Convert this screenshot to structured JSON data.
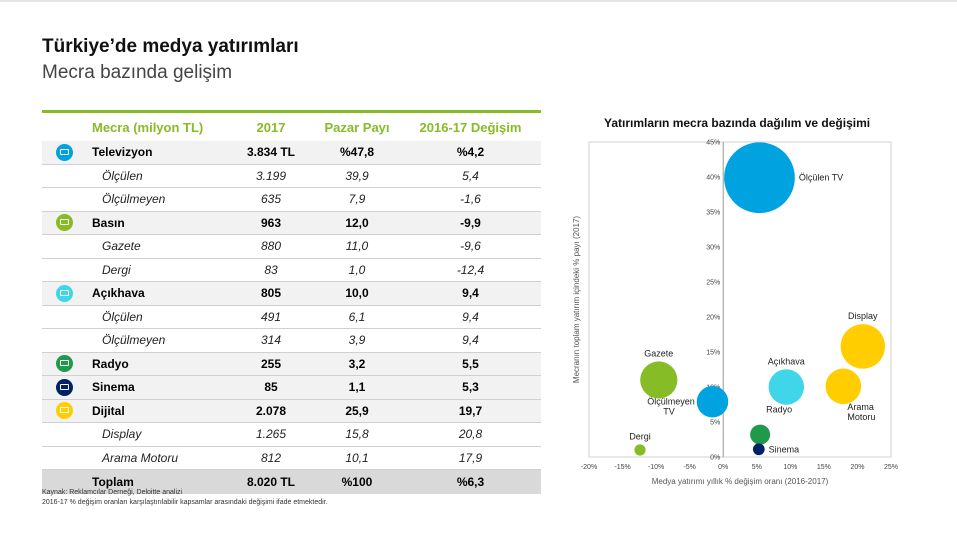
{
  "header": {
    "title": "Türkiye’de medya yatırımları",
    "subtitle": "Mecra bazında gelişim"
  },
  "table": {
    "columns": [
      "Mecra (milyon TL)",
      "2017",
      "Pazar Payı",
      "2016-17 Değişim"
    ],
    "rows": [
      {
        "name": "Televizyon",
        "v2017": "3.834 TL",
        "share": "%47,8",
        "change": "%4,2",
        "level": "main",
        "icon": "tv-icon",
        "icon_color": "#00a3e0"
      },
      {
        "name": "Ölçülen",
        "v2017": "3.199",
        "share": "39,9",
        "change": "5,4",
        "level": "sub"
      },
      {
        "name": "Ölçülmeyen",
        "v2017": "635",
        "share": "7,9",
        "change": "-1,6",
        "level": "sub"
      },
      {
        "name": "Basın",
        "v2017": "963",
        "share": "12,0",
        "change": "-9,9",
        "level": "main",
        "icon": "newspaper-icon",
        "icon_color": "#86bc25"
      },
      {
        "name": "Gazete",
        "v2017": "880",
        "share": "11,0",
        "change": "-9,6",
        "level": "sub"
      },
      {
        "name": "Dergi",
        "v2017": "83",
        "share": "1,0",
        "change": "-12,4",
        "level": "sub"
      },
      {
        "name": "Açıkhava",
        "v2017": "805",
        "share": "10,0",
        "change": "9,4",
        "level": "main",
        "icon": "billboard-icon",
        "icon_color": "#3ed6e8"
      },
      {
        "name": "Ölçülen",
        "v2017": "491",
        "share": "6,1",
        "change": "9,4",
        "level": "sub"
      },
      {
        "name": "Ölçülmeyen",
        "v2017": "314",
        "share": "3,9",
        "change": "9,4",
        "level": "sub"
      },
      {
        "name": "Radyo",
        "v2017": "255",
        "share": "3,2",
        "change": "5,5",
        "level": "main",
        "icon": "radio-icon",
        "icon_color": "#1f9a4a"
      },
      {
        "name": "Sinema",
        "v2017": "85",
        "share": "1,1",
        "change": "5,3",
        "level": "main",
        "icon": "cinema-icon",
        "icon_color": "#012169"
      },
      {
        "name": "Dijital",
        "v2017": "2.078",
        "share": "25,9",
        "change": "19,7",
        "level": "main",
        "icon": "digital-icon",
        "icon_color": "#ffcd00"
      },
      {
        "name": "Display",
        "v2017": "1.265",
        "share": "15,8",
        "change": "20,8",
        "level": "sub"
      },
      {
        "name": "Arama Motoru",
        "v2017": "812",
        "share": "10,1",
        "change": "17,9",
        "level": "sub"
      },
      {
        "name": "Toplam",
        "v2017": "8.020 TL",
        "share": "%100",
        "change": "%6,3",
        "level": "total"
      }
    ]
  },
  "footnotes": [
    "Kaynak: Reklamcılar Derneği, Deloitte analizi",
    "2016-17 % değişim oranları karşılaştırılabilir kapsamlar arasındaki değişimi ifade etmektedir."
  ],
  "chart_data": {
    "type": "scatter",
    "title": "Yatırımların mecra bazında dağılım ve değişimi",
    "xlabel": "Medya yatırımı yıllık % değişim oranı (2016-2017)",
    "ylabel": "Mecranın toplam yatırım içindeki % payı (2017)",
    "xlim": [
      -20,
      25
    ],
    "ylim": [
      0,
      45
    ],
    "x_ticks": [
      "-20%",
      "-15%",
      "-10%",
      "-5%",
      "0%",
      "5%",
      "10%",
      "15%",
      "20%",
      "25%"
    ],
    "y_ticks": [
      "0%",
      "5%",
      "10%",
      "15%",
      "20%",
      "25%",
      "30%",
      "35%",
      "40%",
      "45%"
    ],
    "grid": false,
    "points": [
      {
        "label": "Ölçülen TV",
        "x": 5.4,
        "y": 39.9,
        "size": 39.9,
        "color": "#00a3e0",
        "label_pos": "right"
      },
      {
        "label": "Display",
        "x": 20.8,
        "y": 15.8,
        "size": 15.8,
        "color": "#ffcd00",
        "label_pos": "above"
      },
      {
        "label": "Arama Motoru",
        "x": 17.9,
        "y": 10.1,
        "size": 10.1,
        "color": "#ffcd00",
        "label_pos": "below-right"
      },
      {
        "label": "Gazete",
        "x": -9.6,
        "y": 11.0,
        "size": 11.0,
        "color": "#86bc25",
        "label_pos": "above"
      },
      {
        "label": "Açıkhava",
        "x": 9.4,
        "y": 10.0,
        "size": 10.0,
        "color": "#3ed6e8",
        "label_pos": "above"
      },
      {
        "label": "Ölçülmeyen TV",
        "x": -1.6,
        "y": 7.9,
        "size": 7.9,
        "color": "#00a3e0",
        "label_pos": "left"
      },
      {
        "label": "Radyo",
        "x": 5.5,
        "y": 3.2,
        "size": 3.2,
        "color": "#1f9a4a",
        "label_pos": "above-right"
      },
      {
        "label": "Sinema",
        "x": 5.3,
        "y": 1.1,
        "size": 1.1,
        "color": "#012169",
        "label_pos": "right"
      },
      {
        "label": "Dergi",
        "x": -12.4,
        "y": 1.0,
        "size": 1.0,
        "color": "#86bc25",
        "label_pos": "above"
      }
    ]
  }
}
